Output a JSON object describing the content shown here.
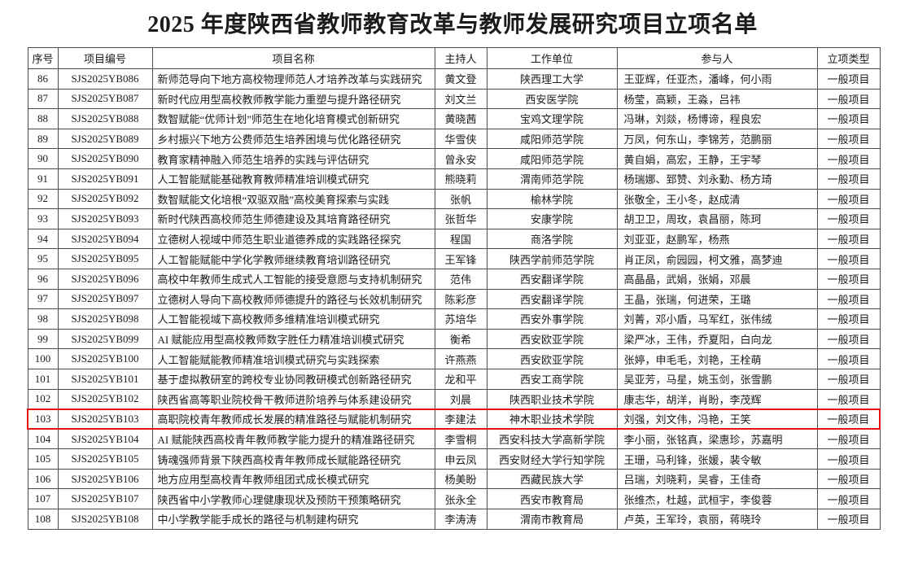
{
  "title": "2025 年度陕西省教师教育改革与教师发展研究项目立项名单",
  "colors": {
    "highlight_box": "#e51414",
    "table_border": "#4c4c4c",
    "text": "#1b1b1b"
  },
  "table": {
    "headers": [
      "序号",
      "项目编号",
      "项目名称",
      "主持人",
      "工作单位",
      "参与人",
      "立项类型"
    ],
    "highlighted_row_no": "103",
    "rows": [
      {
        "no": "86",
        "code": "SJS2025YB086",
        "name": "新师范导向下地方高校物理师范人才培养改革与实践研究",
        "leader": "黄文登",
        "unit": "陕西理工大学",
        "participants": "王亚辉，任亚杰，潘峰，何小雨",
        "type": "一般项目"
      },
      {
        "no": "87",
        "code": "SJS2025YB087",
        "name": "新时代应用型高校教师教学能力重塑与提升路径研究",
        "leader": "刘文兰",
        "unit": "西安医学院",
        "participants": "杨莹，高颖，王淼，吕祎",
        "type": "一般项目"
      },
      {
        "no": "88",
        "code": "SJS2025YB088",
        "name": "数智赋能“优师计划”师范生在地化培育模式创新研究",
        "leader": "黄晓茜",
        "unit": "宝鸡文理学院",
        "participants": "冯琳，刘燚，杨博谛，程良宏",
        "type": "一般项目"
      },
      {
        "no": "89",
        "code": "SJS2025YB089",
        "name": "乡村振兴下地方公费师范生培养困境与优化路径研究",
        "leader": "华雪侠",
        "unit": "咸阳师范学院",
        "participants": "万凤，何东山，李锦芳，范鹏丽",
        "type": "一般项目"
      },
      {
        "no": "90",
        "code": "SJS2025YB090",
        "name": "教育家精神融入师范生培养的实践与评估研究",
        "leader": "曾永安",
        "unit": "咸阳师范学院",
        "participants": "黄自娟，高宏，王静，王宇琴",
        "type": "一般项目"
      },
      {
        "no": "91",
        "code": "SJS2025YB091",
        "name": "人工智能赋能基础教育教师精准培训模式研究",
        "leader": "熊晓莉",
        "unit": "渭南师范学院",
        "participants": "杨瑞娜、郅赞、刘永勤、杨方琦",
        "type": "一般项目"
      },
      {
        "no": "92",
        "code": "SJS2025YB092",
        "name": "数智赋能文化培根“双驱双融”高校美育探索与实践",
        "leader": "张帆",
        "unit": "榆林学院",
        "participants": "张敬全，王小冬，赵成清",
        "type": "一般项目"
      },
      {
        "no": "93",
        "code": "SJS2025YB093",
        "name": "新时代陕西高校师范生师德建设及其培育路径研究",
        "leader": "张哲华",
        "unit": "安康学院",
        "participants": "胡卫卫，周玫，袁昌丽，陈珂",
        "type": "一般项目"
      },
      {
        "no": "94",
        "code": "SJS2025YB094",
        "name": "立德树人视域中师范生职业道德养成的实践路径探究",
        "leader": "程国",
        "unit": "商洛学院",
        "participants": "刘亚亚，赵鹏军，杨燕",
        "type": "一般项目"
      },
      {
        "no": "95",
        "code": "SJS2025YB095",
        "name": "人工智能赋能中学化学教师继续教育培训路径研究",
        "leader": "王军锋",
        "unit": "陕西学前师范学院",
        "participants": "肖正凤，俞园园，柯文雅，高梦迪",
        "type": "一般项目"
      },
      {
        "no": "96",
        "code": "SJS2025YB096",
        "name": "高校中年教师生成式人工智能的接受意愿与支持机制研究",
        "leader": "范伟",
        "unit": "西安翻译学院",
        "participants": "高晶晶，武娟，张娟，邓晨",
        "type": "一般项目"
      },
      {
        "no": "97",
        "code": "SJS2025YB097",
        "name": "立德树人导向下高校教师师德提升的路径与长效机制研究",
        "leader": "陈彩彦",
        "unit": "西安翻译学院",
        "participants": "王晶，张瑞，何进荣，王璐",
        "type": "一般项目"
      },
      {
        "no": "98",
        "code": "SJS2025YB098",
        "name": "人工智能视域下高校教师多维精准培训模式研究",
        "leader": "苏培华",
        "unit": "西安外事学院",
        "participants": "刘菁，邓小盾，马军红，张伟绒",
        "type": "一般项目"
      },
      {
        "no": "99",
        "code": "SJS2025YB099",
        "name": "AI 赋能应用型高校教师数字胜任力精准培训模式研究",
        "leader": "衡希",
        "unit": "西安欧亚学院",
        "participants": "梁严冰，王伟，乔夏阳，白向龙",
        "type": "一般项目"
      },
      {
        "no": "100",
        "code": "SJS2025YB100",
        "name": "人工智能赋能教师精准培训模式研究与实践探索",
        "leader": "许燕燕",
        "unit": "西安欧亚学院",
        "participants": "张婷，申毛毛，刘艳，王栓萌",
        "type": "一般项目"
      },
      {
        "no": "101",
        "code": "SJS2025YB101",
        "name": "基于虚拟教研室的跨校专业协同教研模式创新路径研究",
        "leader": "龙和平",
        "unit": "西安工商学院",
        "participants": "吴亚芳，马星，姚玉剑，张雪鹏",
        "type": "一般项目"
      },
      {
        "no": "102",
        "code": "SJS2025YB102",
        "name": "陕西省高等职业院校骨干教师进阶培养与体系建设研究",
        "leader": "刘晨",
        "unit": "陕西职业技术学院",
        "participants": "康志华，胡洋，肖盼，李茂辉",
        "type": "一般项目"
      },
      {
        "no": "103",
        "code": "SJS2025YB103",
        "name": "高职院校青年教师成长发展的精准路径与赋能机制研究",
        "leader": "李建法",
        "unit": "神木职业技术学院",
        "participants": "刘强，刘文伟，冯艳，王笑",
        "type": "一般项目"
      },
      {
        "no": "104",
        "code": "SJS2025YB104",
        "name": "AI 赋能陕西高校青年教师教学能力提升的精准路径研究",
        "leader": "李雪桐",
        "unit": "西安科技大学高新学院",
        "participants": "李小丽，张铭真，梁惠珍，苏嘉明",
        "type": "一般项目"
      },
      {
        "no": "105",
        "code": "SJS2025YB105",
        "name": "铸魂强师背景下陕西高校青年教师成长赋能路径研究",
        "leader": "申云凤",
        "unit": "西安财经大学行知学院",
        "participants": "王珊，马利锋，张媛，裴令敏",
        "type": "一般项目"
      },
      {
        "no": "106",
        "code": "SJS2025YB106",
        "name": "地方应用型高校青年教师组团式成长模式研究",
        "leader": "杨美盼",
        "unit": "西藏民族大学",
        "participants": "吕瑞，刘晓莉，吴睿，王佳奇",
        "type": "一般项目"
      },
      {
        "no": "107",
        "code": "SJS2025YB107",
        "name": "陕西省中小学教师心理健康现状及预防干预策略研究",
        "leader": "张永全",
        "unit": "西安市教育局",
        "participants": "张维杰，杜越，武桓宇，李俊蓉",
        "type": "一般项目"
      },
      {
        "no": "108",
        "code": "SJS2025YB108",
        "name": "中小学教学能手成长的路径与机制建构研究",
        "leader": "李涛涛",
        "unit": "渭南市教育局",
        "participants": "卢英，王军玲，袁丽，蒋晓玲",
        "type": "一般项目"
      }
    ]
  }
}
